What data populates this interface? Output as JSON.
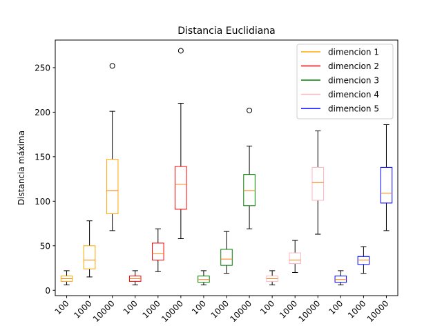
{
  "chart_data": {
    "type": "box",
    "title": "Distancia Euclidiana",
    "xlabel": "",
    "ylabel": "Distancia máxima",
    "ylim": [
      -6,
      281
    ],
    "yticks": [
      0,
      50,
      100,
      150,
      200,
      250
    ],
    "grid": false,
    "legend_position": "top-right",
    "median_color": "#ff7f0e",
    "categories": [
      "100",
      "1000",
      "10000",
      "100",
      "1000",
      "10000",
      "100",
      "1000",
      "10000",
      "100",
      "1000",
      "10000",
      "100",
      "1000",
      "10000"
    ],
    "series": [
      {
        "name": "dimencion 1",
        "color": "#ffa500",
        "boxes": [
          {
            "label": "100",
            "whisker_low": 6,
            "q1": 10,
            "median": 13,
            "q3": 16,
            "whisker_high": 22,
            "outliers": []
          },
          {
            "label": "1000",
            "whisker_low": 15,
            "q1": 24,
            "median": 34,
            "q3": 50,
            "whisker_high": 78,
            "outliers": []
          },
          {
            "label": "10000",
            "whisker_low": 67,
            "q1": 86,
            "median": 112,
            "q3": 147,
            "whisker_high": 201,
            "outliers": [
              252
            ]
          }
        ]
      },
      {
        "name": "dimencion 2",
        "color": "#ff0000",
        "boxes": [
          {
            "label": "100",
            "whisker_low": 6,
            "q1": 10,
            "median": 13,
            "q3": 16,
            "whisker_high": 22,
            "outliers": []
          },
          {
            "label": "1000",
            "whisker_low": 21,
            "q1": 34,
            "median": 41,
            "q3": 53,
            "whisker_high": 69,
            "outliers": []
          },
          {
            "label": "10000",
            "whisker_low": 58,
            "q1": 91,
            "median": 119,
            "q3": 139,
            "whisker_high": 210,
            "outliers": [
              269
            ]
          }
        ]
      },
      {
        "name": "dimencion 3",
        "color": "#008000",
        "boxes": [
          {
            "label": "100",
            "whisker_low": 6,
            "q1": 9,
            "median": 12,
            "q3": 16,
            "whisker_high": 22,
            "outliers": []
          },
          {
            "label": "1000",
            "whisker_low": 19,
            "q1": 28,
            "median": 35,
            "q3": 46,
            "whisker_high": 66,
            "outliers": []
          },
          {
            "label": "10000",
            "whisker_low": 69,
            "q1": 95,
            "median": 112,
            "q3": 130,
            "whisker_high": 162,
            "outliers": [
              202
            ]
          }
        ]
      },
      {
        "name": "dimencion 4",
        "color": "#ffb6c1",
        "boxes": [
          {
            "label": "100",
            "whisker_low": 6,
            "q1": 10,
            "median": 13,
            "q3": 16,
            "whisker_high": 22,
            "outliers": []
          },
          {
            "label": "1000",
            "whisker_low": 20,
            "q1": 30,
            "median": 34,
            "q3": 42,
            "whisker_high": 56,
            "outliers": []
          },
          {
            "label": "10000",
            "whisker_low": 63,
            "q1": 101,
            "median": 121,
            "q3": 138,
            "whisker_high": 179,
            "outliers": []
          }
        ]
      },
      {
        "name": "dimencion 5",
        "color": "#0000ff",
        "boxes": [
          {
            "label": "100",
            "whisker_low": 6,
            "q1": 9,
            "median": 12,
            "q3": 16,
            "whisker_high": 22,
            "outliers": []
          },
          {
            "label": "1000",
            "whisker_low": 19,
            "q1": 29,
            "median": 34,
            "q3": 38,
            "whisker_high": 49,
            "outliers": []
          },
          {
            "label": "10000",
            "whisker_low": 67,
            "q1": 98,
            "median": 109,
            "q3": 138,
            "whisker_high": 186,
            "outliers": []
          }
        ]
      }
    ]
  }
}
